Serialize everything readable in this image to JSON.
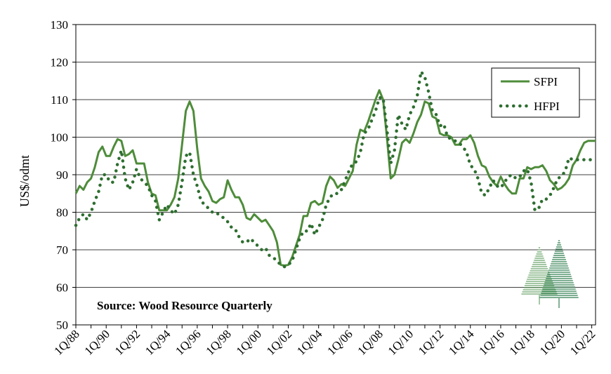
{
  "chart_data": {
    "type": "line",
    "title": "",
    "xlabel": "",
    "ylabel": "US$/odmt",
    "ylim": [
      50,
      130
    ],
    "yticks": [
      50,
      60,
      70,
      80,
      90,
      100,
      110,
      120,
      130
    ],
    "grid": true,
    "legend_position": "top-right",
    "annotation": "Source: Wood Resource Quarterly",
    "x_tick_labels": [
      "1Q/88",
      "1Q/90",
      "1Q/92",
      "1Q/94",
      "1Q/96",
      "1Q/98",
      "1Q/00",
      "1Q/02",
      "1Q/04",
      "1Q/06",
      "1Q/08",
      "1Q/10",
      "1Q/12",
      "1Q/14",
      "1Q/16",
      "1Q/18",
      "1Q/20",
      "1Q/22"
    ],
    "x_start_year": 1988,
    "x_end_year": 2022.25,
    "series": [
      {
        "name": "SFPI",
        "color": "#4e8c3a",
        "style": "solid",
        "points": [
          [
            1988.0,
            85
          ],
          [
            1988.25,
            87
          ],
          [
            1988.5,
            86
          ],
          [
            1988.75,
            88
          ],
          [
            1989.0,
            89
          ],
          [
            1989.25,
            92
          ],
          [
            1989.5,
            96
          ],
          [
            1989.75,
            97.5
          ],
          [
            1990.0,
            95
          ],
          [
            1990.25,
            95
          ],
          [
            1990.5,
            97.5
          ],
          [
            1990.75,
            99.5
          ],
          [
            1991.0,
            99
          ],
          [
            1991.25,
            95
          ],
          [
            1991.5,
            95.5
          ],
          [
            1991.75,
            96.5
          ],
          [
            1992.0,
            93
          ],
          [
            1992.25,
            93
          ],
          [
            1992.5,
            93
          ],
          [
            1992.75,
            88
          ],
          [
            1993.0,
            85
          ],
          [
            1993.25,
            84.5
          ],
          [
            1993.5,
            80.5
          ],
          [
            1993.75,
            80.5
          ],
          [
            1994.0,
            80.5
          ],
          [
            1994.25,
            82
          ],
          [
            1994.5,
            84
          ],
          [
            1994.75,
            89
          ],
          [
            1995.0,
            98
          ],
          [
            1995.25,
            107
          ],
          [
            1995.5,
            109.5
          ],
          [
            1995.75,
            107
          ],
          [
            1996.0,
            97
          ],
          [
            1996.25,
            89
          ],
          [
            1996.5,
            87
          ],
          [
            1996.75,
            85.5
          ],
          [
            1997.0,
            83
          ],
          [
            1997.25,
            82.5
          ],
          [
            1997.5,
            83.5
          ],
          [
            1997.75,
            84
          ],
          [
            1998.0,
            88.5
          ],
          [
            1998.25,
            86
          ],
          [
            1998.5,
            84
          ],
          [
            1998.75,
            84
          ],
          [
            1999.0,
            82
          ],
          [
            1999.25,
            78.5
          ],
          [
            1999.5,
            78
          ],
          [
            1999.75,
            79.5
          ],
          [
            2000.0,
            78.5
          ],
          [
            2000.25,
            77.5
          ],
          [
            2000.5,
            78
          ],
          [
            2000.75,
            76.5
          ],
          [
            2001.0,
            75
          ],
          [
            2001.25,
            72
          ],
          [
            2001.5,
            66
          ],
          [
            2001.75,
            65.8
          ],
          [
            2002.0,
            66
          ],
          [
            2002.25,
            68
          ],
          [
            2002.5,
            71
          ],
          [
            2002.75,
            74
          ],
          [
            2003.0,
            79
          ],
          [
            2003.25,
            79
          ],
          [
            2003.5,
            82.5
          ],
          [
            2003.75,
            83
          ],
          [
            2004.0,
            82
          ],
          [
            2004.25,
            82.5
          ],
          [
            2004.5,
            87
          ],
          [
            2004.75,
            89.5
          ],
          [
            2005.0,
            88.5
          ],
          [
            2005.25,
            86.5
          ],
          [
            2005.5,
            87.5
          ],
          [
            2005.75,
            87
          ],
          [
            2006.0,
            89
          ],
          [
            2006.25,
            91
          ],
          [
            2006.5,
            98
          ],
          [
            2006.75,
            102
          ],
          [
            2007.0,
            101.5
          ],
          [
            2007.25,
            104
          ],
          [
            2007.5,
            107
          ],
          [
            2007.75,
            110
          ],
          [
            2008.0,
            112.5
          ],
          [
            2008.25,
            110
          ],
          [
            2008.5,
            100
          ],
          [
            2008.75,
            89
          ],
          [
            2009.0,
            90
          ],
          [
            2009.25,
            94
          ],
          [
            2009.5,
            98.5
          ],
          [
            2009.75,
            99.5
          ],
          [
            2010.0,
            98.5
          ],
          [
            2010.25,
            101
          ],
          [
            2010.5,
            104
          ],
          [
            2010.75,
            106
          ],
          [
            2011.0,
            109.5
          ],
          [
            2011.25,
            109
          ],
          [
            2011.5,
            105.5
          ],
          [
            2011.75,
            105
          ],
          [
            2012.0,
            101
          ],
          [
            2012.25,
            100.5
          ],
          [
            2012.5,
            100.5
          ],
          [
            2012.75,
            100
          ],
          [
            2013.0,
            98
          ],
          [
            2013.25,
            98
          ],
          [
            2013.5,
            99.5
          ],
          [
            2013.75,
            99.5
          ],
          [
            2014.0,
            100.5
          ],
          [
            2014.25,
            98.5
          ],
          [
            2014.5,
            95
          ],
          [
            2014.75,
            92.5
          ],
          [
            2015.0,
            92
          ],
          [
            2015.25,
            89.5
          ],
          [
            2015.5,
            88
          ],
          [
            2015.75,
            87
          ],
          [
            2016.0,
            89.5
          ],
          [
            2016.25,
            87.5
          ],
          [
            2016.5,
            86
          ],
          [
            2016.75,
            85
          ],
          [
            2017.0,
            85
          ],
          [
            2017.25,
            89
          ],
          [
            2017.5,
            89
          ],
          [
            2017.75,
            92
          ],
          [
            2018.0,
            91.5
          ],
          [
            2018.25,
            92
          ],
          [
            2018.5,
            92
          ],
          [
            2018.75,
            92.5
          ],
          [
            2019.0,
            91
          ],
          [
            2019.25,
            88.5
          ],
          [
            2019.5,
            87.5
          ],
          [
            2019.75,
            86
          ],
          [
            2020.0,
            86.5
          ],
          [
            2020.25,
            87.5
          ],
          [
            2020.5,
            89
          ],
          [
            2020.75,
            92.5
          ],
          [
            2021.0,
            94
          ],
          [
            2021.25,
            96.5
          ],
          [
            2021.5,
            98.5
          ],
          [
            2021.75,
            99
          ],
          [
            2022.0,
            99
          ],
          [
            2022.25,
            99
          ]
        ]
      },
      {
        "name": "HFPI",
        "color": "#2e6e30",
        "style": "dotted",
        "points": [
          [
            1988.0,
            76.5
          ],
          [
            1988.25,
            78.5
          ],
          [
            1988.5,
            79.5
          ],
          [
            1988.75,
            78
          ],
          [
            1989.0,
            80
          ],
          [
            1989.25,
            83
          ],
          [
            1989.5,
            85.5
          ],
          [
            1989.75,
            90
          ],
          [
            1990.0,
            90
          ],
          [
            1990.25,
            88
          ],
          [
            1990.5,
            88
          ],
          [
            1990.75,
            93
          ],
          [
            1991.0,
            96.5
          ],
          [
            1991.25,
            89
          ],
          [
            1991.5,
            86
          ],
          [
            1991.75,
            88
          ],
          [
            1992.0,
            91.5
          ],
          [
            1992.25,
            89
          ],
          [
            1992.5,
            88
          ],
          [
            1992.75,
            87
          ],
          [
            1993.0,
            84.5
          ],
          [
            1993.25,
            83
          ],
          [
            1993.5,
            78
          ],
          [
            1993.75,
            80
          ],
          [
            1994.0,
            82
          ],
          [
            1994.25,
            80.5
          ],
          [
            1994.5,
            79.5
          ],
          [
            1994.75,
            82
          ],
          [
            1995.0,
            88
          ],
          [
            1995.25,
            95
          ],
          [
            1995.5,
            96
          ],
          [
            1995.75,
            90
          ],
          [
            1996.0,
            87
          ],
          [
            1996.25,
            83
          ],
          [
            1996.5,
            82
          ],
          [
            1996.75,
            81
          ],
          [
            1997.0,
            80
          ],
          [
            1997.25,
            80
          ],
          [
            1997.5,
            79
          ],
          [
            1997.75,
            78.5
          ],
          [
            1998.0,
            77.5
          ],
          [
            1998.25,
            76
          ],
          [
            1998.5,
            75.5
          ],
          [
            1998.75,
            73.5
          ],
          [
            1999.0,
            72
          ],
          [
            1999.25,
            72
          ],
          [
            1999.5,
            73
          ],
          [
            1999.75,
            72
          ],
          [
            2000.0,
            71
          ],
          [
            2000.25,
            70
          ],
          [
            2000.5,
            70.5
          ],
          [
            2000.75,
            68.5
          ],
          [
            2001.0,
            68
          ],
          [
            2001.25,
            67
          ],
          [
            2001.5,
            66
          ],
          [
            2001.75,
            65.5
          ],
          [
            2002.0,
            66
          ],
          [
            2002.25,
            67
          ],
          [
            2002.5,
            70
          ],
          [
            2002.75,
            73
          ],
          [
            2003.0,
            75
          ],
          [
            2003.25,
            75
          ],
          [
            2003.5,
            77
          ],
          [
            2003.75,
            74
          ],
          [
            2004.0,
            76
          ],
          [
            2004.25,
            78
          ],
          [
            2004.5,
            82
          ],
          [
            2004.75,
            84
          ],
          [
            2005.0,
            85
          ],
          [
            2005.25,
            85
          ],
          [
            2005.5,
            86
          ],
          [
            2005.75,
            88.5
          ],
          [
            2006.0,
            91
          ],
          [
            2006.25,
            93
          ],
          [
            2006.5,
            93.5
          ],
          [
            2006.75,
            96
          ],
          [
            2007.0,
            101
          ],
          [
            2007.25,
            102
          ],
          [
            2007.5,
            104.5
          ],
          [
            2007.75,
            107
          ],
          [
            2008.0,
            110.5
          ],
          [
            2008.25,
            110.5
          ],
          [
            2008.5,
            102
          ],
          [
            2008.75,
            93
          ],
          [
            2009.0,
            96.5
          ],
          [
            2009.25,
            106
          ],
          [
            2009.5,
            103.5
          ],
          [
            2009.75,
            102
          ],
          [
            2010.0,
            106
          ],
          [
            2010.25,
            108
          ],
          [
            2010.5,
            111
          ],
          [
            2010.75,
            117.5
          ],
          [
            2011.0,
            116
          ],
          [
            2011.25,
            112
          ],
          [
            2011.5,
            107
          ],
          [
            2011.75,
            106
          ],
          [
            2012.0,
            103
          ],
          [
            2012.25,
            103.5
          ],
          [
            2012.5,
            100
          ],
          [
            2012.75,
            99.5
          ],
          [
            2013.0,
            99
          ],
          [
            2013.25,
            98.5
          ],
          [
            2013.5,
            97.5
          ],
          [
            2013.75,
            96
          ],
          [
            2014.0,
            92.5
          ],
          [
            2014.25,
            91.5
          ],
          [
            2014.5,
            89
          ],
          [
            2014.75,
            85
          ],
          [
            2015.0,
            84.5
          ],
          [
            2015.25,
            86.5
          ],
          [
            2015.5,
            88.5
          ],
          [
            2015.75,
            87
          ],
          [
            2016.0,
            86.5
          ],
          [
            2016.25,
            88
          ],
          [
            2016.5,
            89.5
          ],
          [
            2016.75,
            90
          ],
          [
            2017.0,
            89
          ],
          [
            2017.25,
            89.5
          ],
          [
            2017.5,
            91
          ],
          [
            2017.75,
            91.5
          ],
          [
            2018.0,
            88
          ],
          [
            2018.25,
            80.5
          ],
          [
            2018.5,
            81
          ],
          [
            2018.75,
            83.5
          ],
          [
            2019.0,
            83.5
          ],
          [
            2019.25,
            84.5
          ],
          [
            2019.5,
            86.5
          ],
          [
            2019.75,
            89
          ],
          [
            2020.0,
            89.5
          ],
          [
            2020.25,
            91
          ],
          [
            2020.5,
            94.5
          ],
          [
            2020.75,
            94
          ],
          [
            2021.0,
            94
          ],
          [
            2021.25,
            94
          ],
          [
            2021.5,
            94
          ],
          [
            2021.75,
            94
          ],
          [
            2022.0,
            94
          ],
          [
            2022.25,
            94
          ]
        ]
      }
    ]
  }
}
